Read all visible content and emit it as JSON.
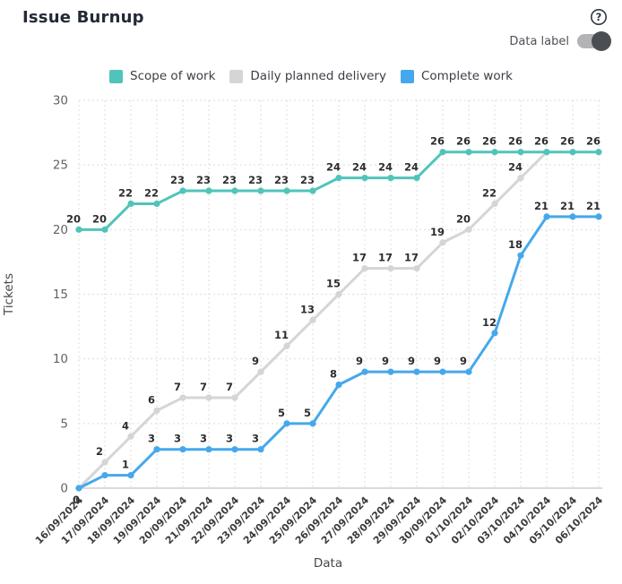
{
  "header": {
    "title": "Issue Burnup"
  },
  "controls": {
    "data_label_toggle": {
      "label": "Data label",
      "state": "on"
    }
  },
  "legend": {
    "items": [
      {
        "label": "Scope of work",
        "color": "#50c4ba"
      },
      {
        "label": "Daily planned delivery",
        "color": "#d5d5d8"
      },
      {
        "label": "Complete work",
        "color": "#45a8ec"
      }
    ]
  },
  "chart_data": {
    "type": "line",
    "title": "Issue Burnup",
    "xlabel": "Data",
    "ylabel": "Tickets",
    "ylim": [
      0,
      30
    ],
    "yticks": [
      0,
      5,
      10,
      15,
      20,
      25,
      30
    ],
    "grid": true,
    "legend_position": "top",
    "x": [
      "16/09/2024",
      "17/09/2024",
      "18/09/2024",
      "19/09/2024",
      "20/09/2024",
      "21/09/2024",
      "22/09/2024",
      "23/09/2024",
      "24/09/2024",
      "25/09/2024",
      "26/09/2024",
      "27/09/2024",
      "28/09/2024",
      "29/09/2024",
      "30/09/2024",
      "01/10/2024",
      "02/10/2024",
      "03/10/2024",
      "04/10/2024",
      "05/10/2024",
      "06/10/2024"
    ],
    "series": [
      {
        "name": "Daily planned delivery",
        "color": "#d5d5d8",
        "values": [
          0,
          2,
          4,
          6,
          7,
          7,
          7,
          9,
          11,
          13,
          15,
          17,
          17,
          17,
          19,
          20,
          22,
          24,
          26,
          null,
          null
        ],
        "labels": [
          "0",
          "2",
          "4",
          "6",
          "7",
          "7",
          "7",
          "9",
          "11",
          "13",
          "15",
          "17",
          "17",
          "17",
          "19",
          "20",
          "22",
          "24",
          null,
          null,
          null
        ]
      },
      {
        "name": "Scope of work",
        "color": "#50c4ba",
        "values": [
          20,
          20,
          22,
          22,
          23,
          23,
          23,
          23,
          23,
          23,
          24,
          24,
          24,
          24,
          26,
          26,
          26,
          26,
          26,
          26,
          26
        ],
        "labels": [
          "20",
          "20",
          "22",
          "22",
          "23",
          "23",
          "23",
          "23",
          "23",
          "23",
          "24",
          "24",
          "24",
          "24",
          "26",
          "26",
          "26",
          "26",
          "26",
          "26",
          "26"
        ]
      },
      {
        "name": "Complete work",
        "color": "#45a8ec",
        "values": [
          0,
          1,
          1,
          3,
          3,
          3,
          3,
          3,
          5,
          5,
          8,
          9,
          9,
          9,
          9,
          9,
          12,
          18,
          21,
          21,
          21
        ],
        "labels": [
          null,
          null,
          "1",
          "3",
          "3",
          "3",
          "3",
          "3",
          "5",
          "5",
          "8",
          "9",
          "9",
          "9",
          "9",
          "9",
          "12",
          "18",
          "21",
          "21",
          "21"
        ]
      }
    ],
    "label_color": "#2d2d2d",
    "grid_color": "#dedede",
    "axis_line_color": "#c4c4c4",
    "tick_color": "#606468",
    "date_tick_color": "#3a3a3a",
    "axis_title_color": "#45484e"
  }
}
